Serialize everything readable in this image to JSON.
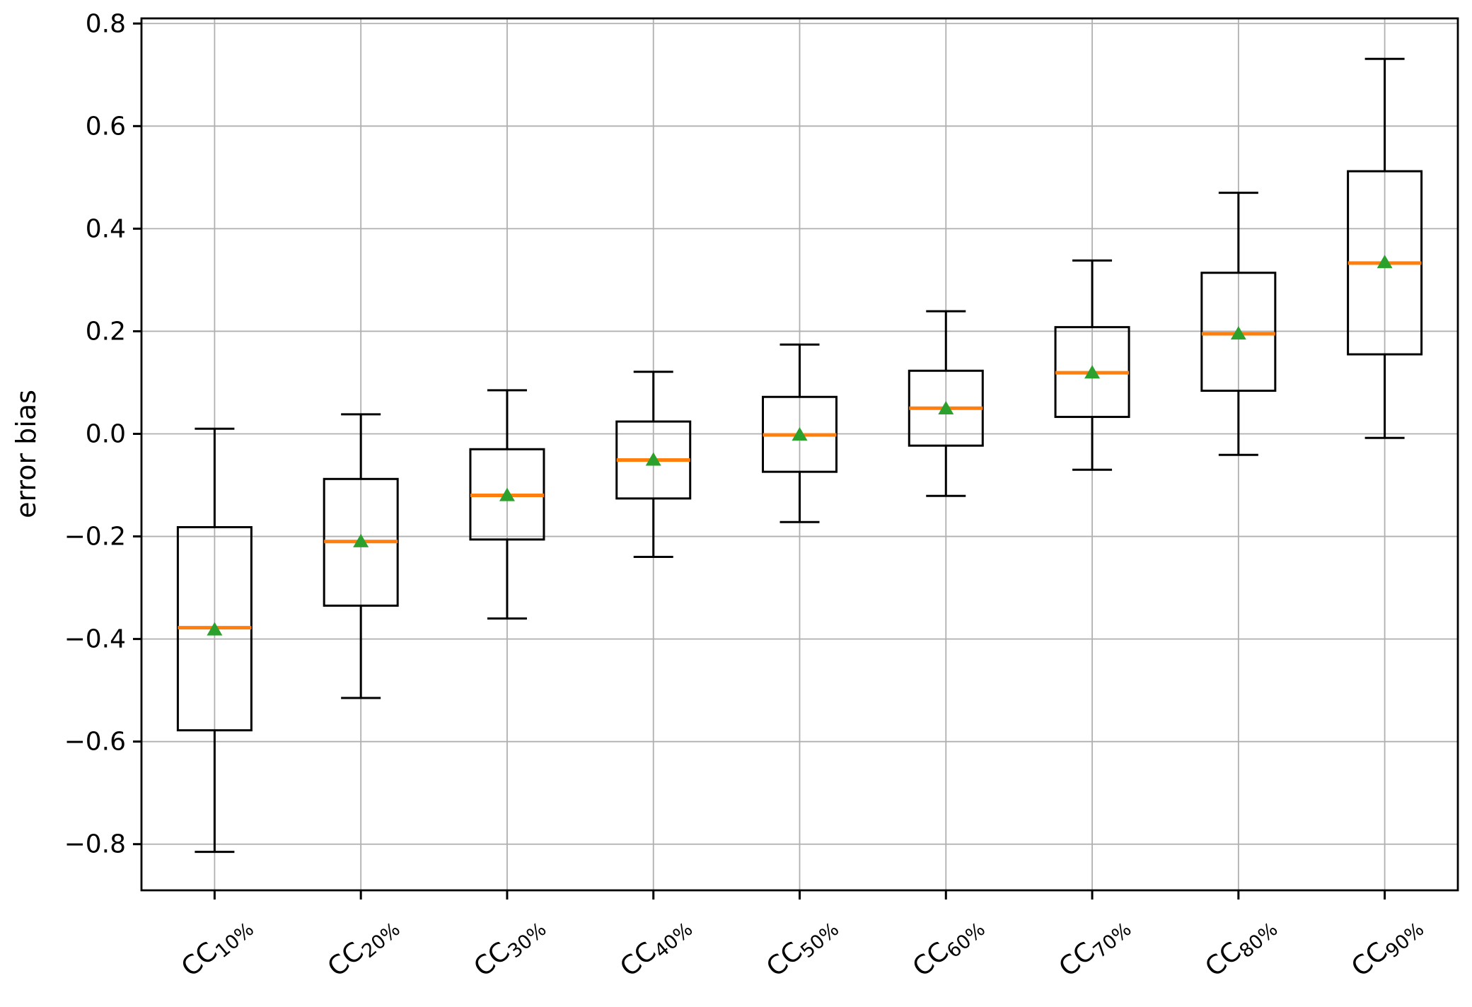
{
  "figure": {
    "background": "#ffffff"
  },
  "chart_data": {
    "type": "box",
    "title": "",
    "xlabel": "",
    "ylabel": "error bias",
    "ylim": [
      -0.89,
      0.81
    ],
    "grid": true,
    "legend": "none",
    "yticks": [
      {
        "value": 0.8,
        "label": "0.8"
      },
      {
        "value": 0.6,
        "label": "0.6"
      },
      {
        "value": 0.4,
        "label": "0.4"
      },
      {
        "value": 0.2,
        "label": "0.2"
      },
      {
        "value": 0.0,
        "label": "0.0"
      },
      {
        "value": -0.2,
        "label": "−0.2"
      },
      {
        "value": -0.4,
        "label": "−0.4"
      },
      {
        "value": -0.6,
        "label": "−0.6"
      },
      {
        "value": -0.8,
        "label": "−0.8"
      }
    ],
    "categories": [
      {
        "base": "CC",
        "sub": "10%",
        "label": "CC10%"
      },
      {
        "base": "CC",
        "sub": "20%",
        "label": "CC20%"
      },
      {
        "base": "CC",
        "sub": "30%",
        "label": "CC30%"
      },
      {
        "base": "CC",
        "sub": "40%",
        "label": "CC40%"
      },
      {
        "base": "CC",
        "sub": "50%",
        "label": "CC50%"
      },
      {
        "base": "CC",
        "sub": "60%",
        "label": "CC60%"
      },
      {
        "base": "CC",
        "sub": "70%",
        "label": "CC70%"
      },
      {
        "base": "CC",
        "sub": "80%",
        "label": "CC80%"
      },
      {
        "base": "CC",
        "sub": "90%",
        "label": "CC90%"
      }
    ],
    "boxes": [
      {
        "category": "CC10%",
        "whislo": -0.815,
        "q1": -0.578,
        "med": -0.378,
        "mean": -0.38,
        "q3": -0.182,
        "whishi": 0.01
      },
      {
        "category": "CC20%",
        "whislo": -0.515,
        "q1": -0.335,
        "med": -0.21,
        "mean": -0.208,
        "q3": -0.088,
        "whishi": 0.038
      },
      {
        "category": "CC30%",
        "whislo": -0.36,
        "q1": -0.206,
        "med": -0.12,
        "mean": -0.118,
        "q3": -0.03,
        "whishi": 0.085
      },
      {
        "category": "CC40%",
        "whislo": -0.24,
        "q1": -0.126,
        "med": -0.051,
        "mean": -0.049,
        "q3": 0.024,
        "whishi": 0.121
      },
      {
        "category": "CC50%",
        "whislo": -0.172,
        "q1": -0.074,
        "med": -0.002,
        "mean": 0.0,
        "q3": 0.072,
        "whishi": 0.174
      },
      {
        "category": "CC60%",
        "whislo": -0.121,
        "q1": -0.023,
        "med": 0.05,
        "mean": 0.051,
        "q3": 0.123,
        "whishi": 0.239
      },
      {
        "category": "CC70%",
        "whislo": -0.07,
        "q1": 0.033,
        "med": 0.119,
        "mean": 0.121,
        "q3": 0.208,
        "whishi": 0.338
      },
      {
        "category": "CC80%",
        "whislo": -0.041,
        "q1": 0.084,
        "med": 0.195,
        "mean": 0.197,
        "q3": 0.314,
        "whishi": 0.47
      },
      {
        "category": "CC90%",
        "whislo": -0.008,
        "q1": 0.155,
        "med": 0.333,
        "mean": 0.336,
        "q3": 0.512,
        "whishi": 0.731
      }
    ],
    "style": {
      "box_color": "#000000",
      "whisker_color": "#000000",
      "median_color": "#ff7f0e",
      "mean_color": "#2ca02c",
      "mean_marker": "triangle-up",
      "grid_color": "#b0b0b0",
      "spine_color": "#000000",
      "background": "#ffffff"
    }
  }
}
